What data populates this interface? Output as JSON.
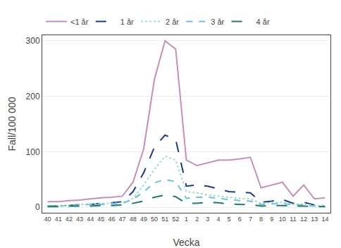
{
  "chart_data": {
    "type": "line",
    "xlabel": "Vecka",
    "ylabel": "Fall/100 000",
    "categories": [
      "40",
      "41",
      "42",
      "43",
      "44",
      "45",
      "46",
      "47",
      "48",
      "49",
      "50",
      "51",
      "52",
      "1",
      "2",
      "3",
      "4",
      "5",
      "6",
      "7",
      "8",
      "9",
      "10",
      "11",
      "12",
      "13",
      "14"
    ],
    "series": [
      {
        "name": "<1 år",
        "color": "#c490b8",
        "line_style": "solid",
        "values": [
          10,
          10,
          12,
          13,
          15,
          17,
          18,
          20,
          45,
          105,
          230,
          300,
          285,
          85,
          75,
          80,
          85,
          85,
          87,
          90,
          35,
          40,
          45,
          20,
          40,
          15,
          17
        ]
      },
      {
        "name": "1 år",
        "color": "#1a3a8f",
        "line_style": "longdash",
        "values": [
          2,
          2,
          3,
          5,
          5,
          7,
          8,
          10,
          28,
          62,
          108,
          130,
          122,
          38,
          40,
          38,
          33,
          28,
          27,
          26,
          9,
          11,
          14,
          7,
          9,
          4,
          4
        ]
      },
      {
        "name": "2 år",
        "color": "#a0ddd0",
        "line_style": "dotted",
        "values": [
          3,
          3,
          4,
          5,
          6,
          7,
          7,
          8,
          16,
          40,
          68,
          92,
          85,
          28,
          26,
          22,
          20,
          18,
          16,
          15,
          7,
          8,
          9,
          5,
          6,
          3,
          3
        ]
      },
      {
        "name": "3 år",
        "color": "#6cc4d8",
        "line_style": "dashed",
        "values": [
          2,
          2,
          3,
          4,
          5,
          5,
          6,
          7,
          14,
          28,
          44,
          50,
          46,
          16,
          18,
          18,
          16,
          14,
          12,
          11,
          5,
          6,
          7,
          4,
          4,
          2,
          2
        ]
      },
      {
        "name": "4 år",
        "color": "#1a7a6e",
        "line_style": "longdash",
        "values": [
          1,
          1,
          2,
          2,
          2,
          3,
          3,
          4,
          7,
          11,
          18,
          22,
          19,
          7,
          7,
          9,
          8,
          6,
          5,
          5,
          2,
          3,
          3,
          2,
          2,
          1,
          1
        ]
      }
    ],
    "ylim": [
      -10,
      310
    ],
    "yticks": [
      0,
      100,
      200,
      300
    ],
    "grid": true,
    "legend": "top"
  }
}
